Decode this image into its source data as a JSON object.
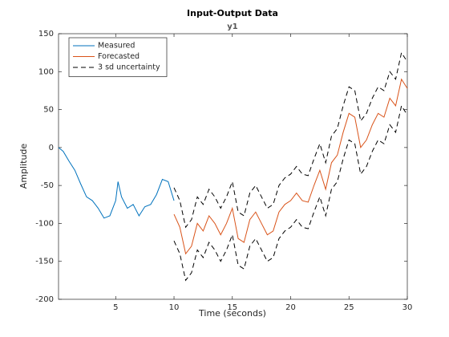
{
  "chart_data": {
    "type": "line",
    "title": "Input-Output Data",
    "subtitle": "y1",
    "x_label": "Time (seconds)",
    "y_label": "Amplitude",
    "xlim": [
      0.1,
      30
    ],
    "ylim": [
      -200,
      150
    ],
    "xticks": [
      5,
      10,
      15,
      20,
      25,
      30
    ],
    "yticks": [
      -200,
      -150,
      -100,
      -50,
      0,
      50,
      100,
      150
    ],
    "grid": false,
    "legend": "northwest",
    "series": [
      {
        "name": "Measured",
        "color": "#0072bd",
        "dash": "solid",
        "x": [
          0.1,
          0.5,
          1,
          1.5,
          2,
          2.5,
          3,
          3.5,
          4,
          4.5,
          5,
          5.2,
          5.5,
          6,
          6.5,
          7,
          7.5,
          8,
          8.5,
          9,
          9.5,
          10
        ],
        "values": [
          0,
          -5,
          -18,
          -30,
          -48,
          -65,
          -70,
          -80,
          -93,
          -90,
          -70,
          -45,
          -65,
          -80,
          -75,
          -90,
          -78,
          -75,
          -62,
          -42,
          -45,
          -70
        ]
      },
      {
        "name": "Forecasted",
        "color": "#d95319",
        "dash": "solid",
        "x": [
          10,
          10.5,
          11,
          11.5,
          12,
          12.5,
          13,
          13.5,
          14,
          14.5,
          15,
          15.5,
          16,
          16.5,
          17,
          17.5,
          18,
          18.5,
          19,
          19.5,
          20,
          20.5,
          21,
          21.5,
          22,
          22.5,
          23,
          23.5,
          24,
          24.5,
          25,
          25.5,
          26,
          26.5,
          27,
          27.5,
          28,
          28.5,
          29,
          29.5,
          30
        ],
        "values": [
          -88,
          -105,
          -140,
          -130,
          -100,
          -110,
          -90,
          -100,
          -115,
          -100,
          -80,
          -120,
          -125,
          -95,
          -85,
          -100,
          -115,
          -110,
          -85,
          -75,
          -70,
          -60,
          -70,
          -72,
          -50,
          -30,
          -55,
          -20,
          -10,
          20,
          45,
          40,
          0,
          10,
          30,
          45,
          40,
          65,
          55,
          90,
          78
        ]
      },
      {
        "name": "3 sd uncertainty",
        "color": "#000000",
        "dash": "dashed",
        "x": [
          10,
          10.5,
          11,
          11.5,
          12,
          12.5,
          13,
          13.5,
          14,
          14.5,
          15,
          15.5,
          16,
          16.5,
          17,
          17.5,
          18,
          18.5,
          19,
          19.5,
          20,
          20.5,
          21,
          21.5,
          22,
          22.5,
          23,
          23.5,
          24,
          24.5,
          25,
          25.5,
          26,
          26.5,
          27,
          27.5,
          28,
          28.5,
          29,
          29.5,
          30
        ],
        "upper": [
          -53,
          -70,
          -105,
          -95,
          -65,
          -75,
          -55,
          -65,
          -80,
          -65,
          -45,
          -85,
          -90,
          -60,
          -50,
          -65,
          -80,
          -75,
          -50,
          -40,
          -35,
          -25,
          -35,
          -37,
          -15,
          5,
          -20,
          15,
          25,
          55,
          80,
          75,
          35,
          45,
          65,
          80,
          75,
          100,
          90,
          125,
          113
        ],
        "lower": [
          -123,
          -140,
          -175,
          -165,
          -135,
          -145,
          -125,
          -135,
          -150,
          -135,
          -115,
          -155,
          -160,
          -130,
          -120,
          -135,
          -150,
          -145,
          -120,
          -110,
          -105,
          -95,
          -105,
          -107,
          -85,
          -65,
          -90,
          -55,
          -45,
          -15,
          10,
          5,
          -35,
          -25,
          -5,
          10,
          5,
          30,
          20,
          55,
          43
        ]
      }
    ]
  }
}
